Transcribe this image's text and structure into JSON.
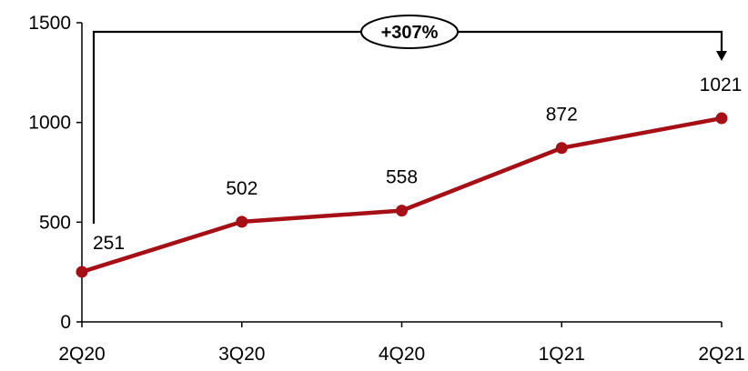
{
  "chart_data": {
    "type": "line",
    "categories": [
      "2Q20",
      "3Q20",
      "4Q20",
      "1Q21",
      "2Q21"
    ],
    "values": [
      251,
      502,
      558,
      872,
      1021
    ],
    "data_labels": [
      "251",
      "502",
      "558",
      "872",
      "1021"
    ],
    "title": "",
    "xlabel": "",
    "ylabel": "",
    "ylim": [
      0,
      1500
    ],
    "yticks": [
      0,
      500,
      1000,
      1500
    ],
    "ytick_labels": [
      "0",
      "500",
      "1000",
      "1500"
    ],
    "grid": false,
    "legend": "none",
    "series_color": "#A50F15",
    "annotation": {
      "text": "+307%",
      "from_category": "2Q20",
      "to_category": "2Q21"
    }
  }
}
